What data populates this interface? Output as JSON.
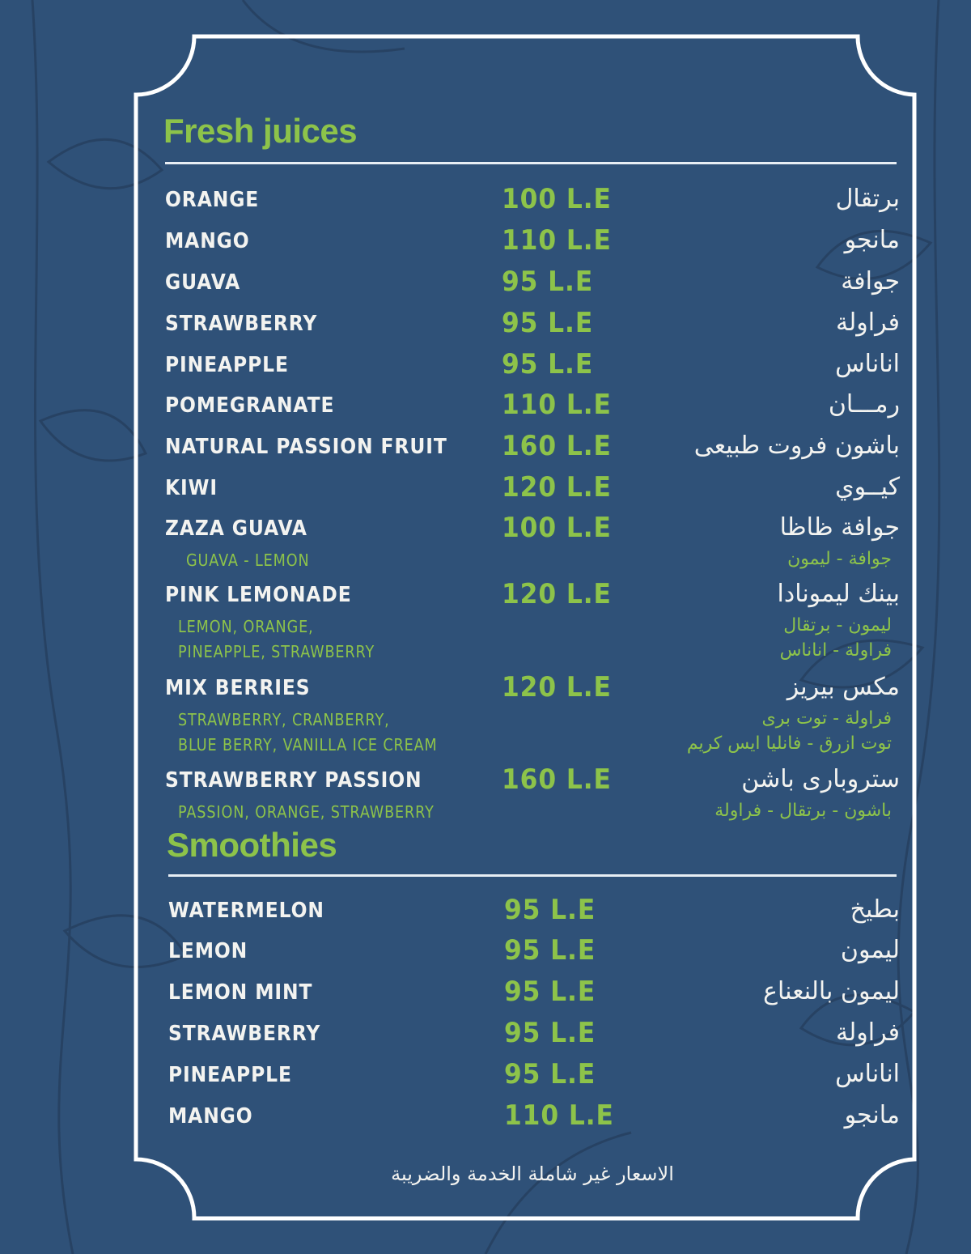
{
  "colors": {
    "background": "#2f5178",
    "accent": "#8dc34a",
    "text": "#f3f3f0",
    "frame": "#ffffff"
  },
  "sections": [
    {
      "title": "Fresh juices",
      "items": [
        {
          "en": "ORANGE",
          "price": "100 L.E",
          "ar": "برتقال",
          "sub_en": [],
          "sub_ar": []
        },
        {
          "en": "MANGO",
          "price": "110 L.E",
          "ar": "مانجو",
          "sub_en": [],
          "sub_ar": []
        },
        {
          "en": "GUAVA",
          "price": "95 L.E",
          "ar": "جوافة",
          "sub_en": [],
          "sub_ar": []
        },
        {
          "en": "STRAWBERRY",
          "price": "95 L.E",
          "ar": "فراولة",
          "sub_en": [],
          "sub_ar": []
        },
        {
          "en": "PINEAPPLE",
          "price": "95 L.E",
          "ar": "اناناس",
          "sub_en": [],
          "sub_ar": []
        },
        {
          "en": "POMEGRANATE",
          "price": "110 L.E",
          "ar": "رمـــان",
          "sub_en": [],
          "sub_ar": []
        },
        {
          "en": "NATURAL PASSION FRUIT",
          "price": "160 L.E",
          "ar": "باشون فروت طبيعى",
          "sub_en": [],
          "sub_ar": []
        },
        {
          "en": "KIWI",
          "price": "120 L.E",
          "ar": "كيــوي",
          "sub_en": [],
          "sub_ar": []
        },
        {
          "en": "ZAZA GUAVA",
          "price": "100 L.E",
          "ar": "جوافة ظاظا",
          "sub_en": [
            "GUAVA - LEMON"
          ],
          "sub_ar": [
            "جوافة - ليمون"
          ]
        },
        {
          "en": "PINK LEMONADE",
          "price": "120 L.E",
          "ar": "بينك ليمونادا",
          "sub_en": [
            "LEMON, ORANGE,",
            "PINEAPPLE, STRAWBERRY"
          ],
          "sub_ar": [
            "ليمون - برتقال",
            "فراولة - اناناس"
          ]
        },
        {
          "en": "MIX BERRIES",
          "price": "120 L.E",
          "ar": "مكس بيريز",
          "sub_en": [
            "STRAWBERRY, CRANBERRY,",
            "BLUE BERRY, VANILLA ICE CREAM"
          ],
          "sub_ar": [
            "فراولة - توت برى",
            "توت ازرق - فانليا ايس كريم"
          ]
        },
        {
          "en": "STRAWBERRY PASSION",
          "price": "160 L.E",
          "ar": "ستروبارى باشن",
          "sub_en": [
            "PASSION, ORANGE, STRAWBERRY"
          ],
          "sub_ar": [
            "باشون - برتقال - فراولة"
          ]
        }
      ]
    },
    {
      "title": "Smoothies",
      "items": [
        {
          "en": "WATERMELON",
          "price": "95 L.E",
          "ar": "بطيخ",
          "sub_en": [],
          "sub_ar": []
        },
        {
          "en": "LEMON",
          "price": "95 L.E",
          "ar": "ليمون",
          "sub_en": [],
          "sub_ar": []
        },
        {
          "en": "LEMON MINT",
          "price": "95 L.E",
          "ar": "ليمون بالنعناع",
          "sub_en": [],
          "sub_ar": []
        },
        {
          "en": "STRAWBERRY",
          "price": "95 L.E",
          "ar": "فراولة",
          "sub_en": [],
          "sub_ar": []
        },
        {
          "en": "PINEAPPLE",
          "price": "95 L.E",
          "ar": "اناناس",
          "sub_en": [],
          "sub_ar": []
        },
        {
          "en": "MANGO",
          "price": "110 L.E",
          "ar": "مانجو",
          "sub_en": [],
          "sub_ar": []
        }
      ]
    }
  ],
  "footer_note": "الاسعار غير شاملة الخدمة والضريبة"
}
